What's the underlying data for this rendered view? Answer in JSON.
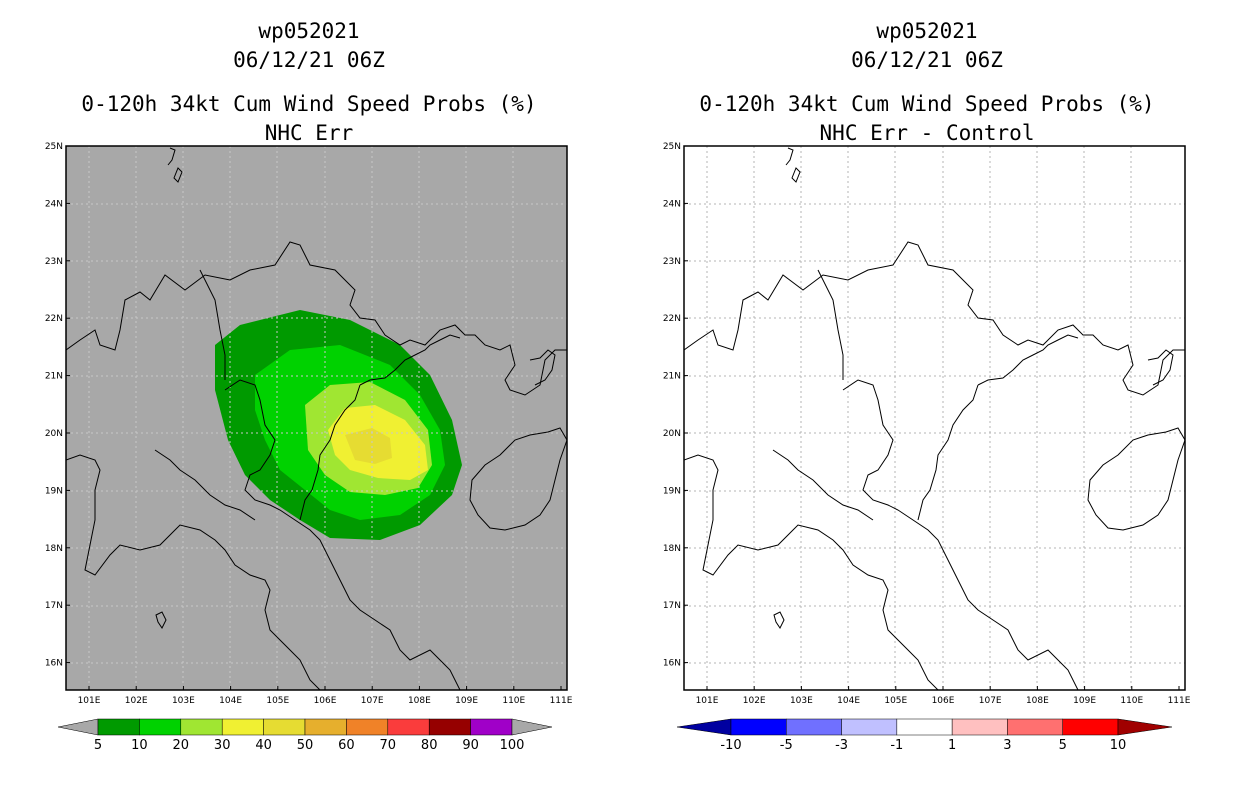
{
  "left_panel": {
    "title_line1": "wp052021",
    "title_line2": "06/12/21 06Z",
    "title_line3": "0-120h 34kt Cum Wind Speed Probs (%)",
    "title_line4": "NHC Err",
    "background_color": "#a8a8a8"
  },
  "right_panel": {
    "title_line1": "wp052021",
    "title_line2": "06/12/21 06Z",
    "title_line3": "0-120h 34kt Cum Wind Speed Probs (%)",
    "title_line4": "NHC Err - Control",
    "background_color": "#ffffff"
  },
  "axes": {
    "lat_labels": [
      "25N",
      "24N",
      "23N",
      "22N",
      "21N",
      "20N",
      "19N",
      "18N",
      "17N",
      "16N"
    ],
    "lon_labels": [
      "101E",
      "102E",
      "103E",
      "104E",
      "105E",
      "106E",
      "107E",
      "108E",
      "109E",
      "110E",
      "111E"
    ]
  },
  "left_colorbar": {
    "labels": [
      "5",
      "10",
      "20",
      "30",
      "40",
      "50",
      "60",
      "70",
      "80",
      "90",
      "100"
    ],
    "colors": [
      "#009a00",
      "#00d200",
      "#a0e632",
      "#f0f032",
      "#e6dc32",
      "#e6af2d",
      "#f08228",
      "#fa3c3c",
      "#960000",
      "#a000c8"
    ],
    "end_color": "#a8a8a8"
  },
  "right_colorbar": {
    "labels": [
      "-10",
      "-5",
      "-3",
      "-1",
      "1",
      "3",
      "5",
      "10"
    ],
    "colors": [
      "#0000ff",
      "#7070ff",
      "#c0c0ff",
      "#ffffff",
      "#ffc0c0",
      "#ff7070",
      "#ff0000"
    ],
    "low_color": "#0000a0",
    "high_color": "#a00000"
  },
  "probability_contours": [
    {
      "level": "5",
      "color": "#009a00"
    },
    {
      "level": "10",
      "color": "#00d200"
    },
    {
      "level": "20",
      "color": "#a0e632"
    },
    {
      "level": "30",
      "color": "#f0f032"
    },
    {
      "level": "40",
      "color": "#e6dc32"
    }
  ]
}
